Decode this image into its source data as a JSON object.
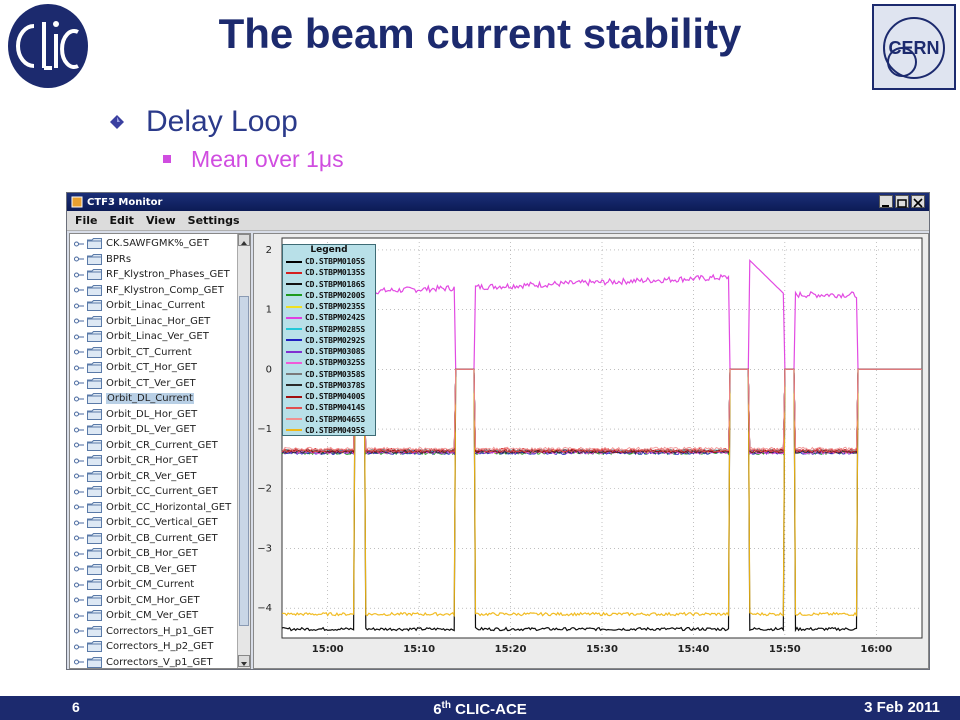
{
  "slide": {
    "title": "The beam current stability",
    "bullet1": "Delay Loop",
    "bullet2": "Mean over 1μs",
    "logo_left_text": "CLIC",
    "logo_right_text": "CERN"
  },
  "window": {
    "title": "CTF3 Monitor",
    "menu": [
      "File",
      "Edit",
      "View",
      "Settings"
    ]
  },
  "tree": {
    "items": [
      {
        "label": "CK.SAWFGMK%_GET"
      },
      {
        "label": "BPRs"
      },
      {
        "label": "RF_Klystron_Phases_GET"
      },
      {
        "label": "RF_Klystron_Comp_GET"
      },
      {
        "label": "Orbit_Linac_Current"
      },
      {
        "label": "Orbit_Linac_Hor_GET"
      },
      {
        "label": "Orbit_Linac_Ver_GET"
      },
      {
        "label": "Orbit_CT_Current"
      },
      {
        "label": "Orbit_CT_Hor_GET"
      },
      {
        "label": "Orbit_CT_Ver_GET"
      },
      {
        "label": "Orbit_DL_Current",
        "selected": true
      },
      {
        "label": "Orbit_DL_Hor_GET"
      },
      {
        "label": "Orbit_DL_Ver_GET"
      },
      {
        "label": "Orbit_CR_Current_GET"
      },
      {
        "label": "Orbit_CR_Hor_GET"
      },
      {
        "label": "Orbit_CR_Ver_GET"
      },
      {
        "label": "Orbit_CC_Current_GET"
      },
      {
        "label": "Orbit_CC_Horizontal_GET"
      },
      {
        "label": "Orbit_CC_Vertical_GET"
      },
      {
        "label": "Orbit_CB_Current_GET"
      },
      {
        "label": "Orbit_CB_Hor_GET"
      },
      {
        "label": "Orbit_CB_Ver_GET"
      },
      {
        "label": "Orbit_CM_Current"
      },
      {
        "label": "Orbit_CM_Hor_GET"
      },
      {
        "label": "Orbit_CM_Ver_GET"
      },
      {
        "label": "Correctors_H_p1_GET"
      },
      {
        "label": "Correctors_H_p2_GET"
      },
      {
        "label": "Correctors_V_p1_GET"
      }
    ]
  },
  "chart_data": {
    "type": "line",
    "title": "",
    "xlabel": "",
    "ylabel": "",
    "legend_title": "Legend",
    "legend_position": "top-left",
    "grid": true,
    "xlim": [
      "14:55",
      "16:05"
    ],
    "ylim": [
      -4.5,
      2.2
    ],
    "x_ticks": [
      "15:00",
      "15:10",
      "15:20",
      "15:30",
      "15:40",
      "15:50",
      "16:00"
    ],
    "y_ticks": [
      2,
      1,
      0,
      -1,
      -2,
      -3,
      -4
    ],
    "y_tick_labels": [
      "2",
      "1",
      "0",
      "−1",
      "−2",
      "−3",
      "−4"
    ],
    "series": [
      {
        "name": "CD.STBPM0105S",
        "color": "#000000",
        "level": -4.35
      },
      {
        "name": "CD.STBPM0135S",
        "color": "#d42020",
        "level": -1.35
      },
      {
        "name": "CD.STBPM0186S",
        "color": "#111111",
        "level": -1.38
      },
      {
        "name": "CD.STBPM0200S",
        "color": "#1e9a1e",
        "level": -1.4
      },
      {
        "name": "CD.STBPM0235S",
        "color": "#f0e020",
        "level": -1.38
      },
      {
        "name": "CD.STBPM0242S",
        "color": "#e040e0",
        "level": 1.25
      },
      {
        "name": "CD.STBPM0285S",
        "color": "#20c8d8",
        "level": -1.37
      },
      {
        "name": "CD.STBPM0292S",
        "color": "#2020c0",
        "level": -1.4
      },
      {
        "name": "CD.STBPM0308S",
        "color": "#8030d0",
        "level": -1.38
      },
      {
        "name": "CD.STBPM0325S",
        "color": "#f05ad8",
        "level": -1.39
      },
      {
        "name": "CD.STBPM0358S",
        "color": "#7a7a7a",
        "level": -1.36
      },
      {
        "name": "CD.STBPM0378S",
        "color": "#2a2a2a",
        "level": -1.38
      },
      {
        "name": "CD.STBPM0400S",
        "color": "#a01010",
        "level": -1.37
      },
      {
        "name": "CD.STBPM0414S",
        "color": "#e05050",
        "level": -1.36
      },
      {
        "name": "CD.STBPM0465S",
        "color": "#f09090",
        "level": -1.33
      },
      {
        "name": "CD.STBPM0495S",
        "color": "#f0b818",
        "level": -4.1
      }
    ],
    "gaps": [
      [
        "15:03",
        "15:04"
      ],
      [
        "15:14",
        "15:16"
      ],
      [
        "15:44",
        "15:46"
      ],
      [
        "15:50",
        "15:51"
      ],
      [
        "15:58",
        "16:05"
      ]
    ]
  },
  "footer": {
    "page_number": "6",
    "conference_prefix": "6",
    "conference_sup": "th",
    "conference_suffix": " CLIC-ACE",
    "date": "3 Feb 2011"
  },
  "colors": {
    "title": "#1c2a6e",
    "bullet1": "#2b3a8a",
    "bullet2": "#d04de0",
    "footer_bg": "#1c2a6e",
    "window_title_bg": "#0c1b55"
  }
}
